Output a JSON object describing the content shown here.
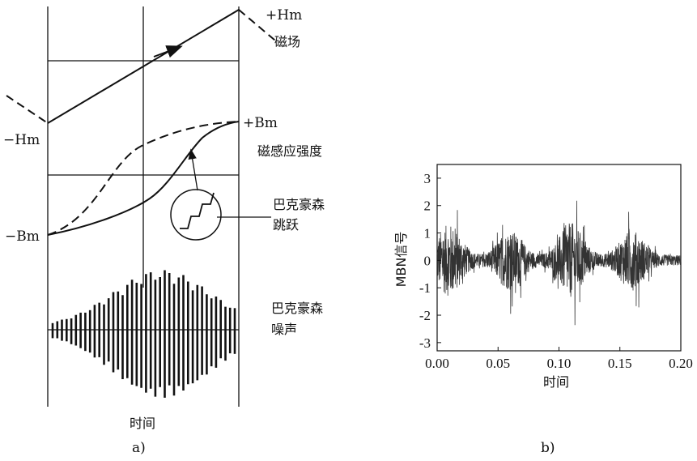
{
  "panel_a": {
    "labels": {
      "pos_h": "+Hm",
      "field": "磁场",
      "neg_h": "−Hm",
      "pos_b": "+Bm",
      "induction": "磁感应强度",
      "neg_b": "−Bm",
      "jump_line1": "巴克豪森",
      "jump_line2": "跳跃",
      "noise_line1": "巴克豪森",
      "noise_line2": "噪声",
      "xlabel": "时间"
    },
    "caption": "a)"
  },
  "panel_b": {
    "caption": "b)",
    "chart_data": {
      "type": "line",
      "xlabel": "时间",
      "ylabel": "MBN信号",
      "xlim": [
        0.0,
        0.2
      ],
      "ylim": [
        -3.3,
        3.5
      ],
      "x_ticks": [
        "0.00",
        "0.05",
        "0.10",
        "0.15",
        "0.20"
      ],
      "y_ticks": [
        "3",
        "2",
        "1",
        "0",
        "-1",
        "-2",
        "-3"
      ],
      "x_tick_values": [
        0.0,
        0.05,
        0.1,
        0.15,
        0.2
      ],
      "y_tick_values": [
        3,
        2,
        1,
        0,
        -1,
        -2,
        -3
      ],
      "envelope_peaks": [
        {
          "x": 0.01,
          "amp": 2.4
        },
        {
          "x": 0.06,
          "amp": 2.0
        },
        {
          "x": 0.11,
          "amp": 2.5
        },
        {
          "x": 0.16,
          "amp": 2.0
        }
      ],
      "baseline_amp": 0.35,
      "line_color": "#333333"
    }
  }
}
